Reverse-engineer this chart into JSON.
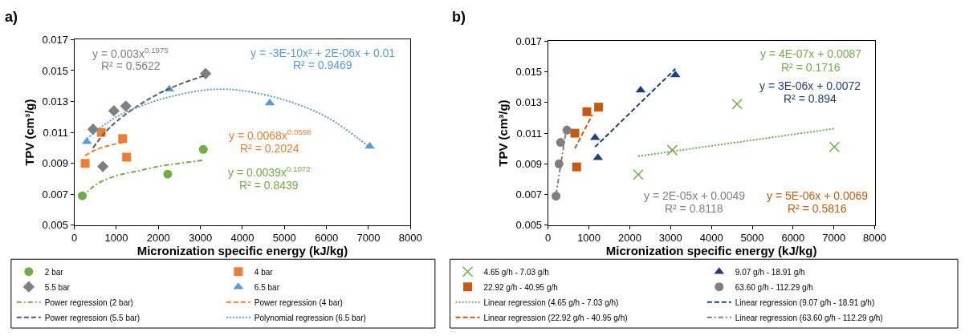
{
  "chart_data": [
    {
      "type": "scatter",
      "title": "a)",
      "xlabel": "Micronization specific energy (kJ/kg)",
      "ylabel": "TPV (cm³/g)",
      "xlim": [
        0,
        8000
      ],
      "xticks": [
        0,
        1000,
        2000,
        3000,
        4000,
        5000,
        6000,
        7000,
        8000
      ],
      "ylim": [
        0.005,
        0.017
      ],
      "yticks": [
        0.005,
        0.007,
        0.009,
        0.011,
        0.013,
        0.015,
        0.017
      ],
      "legend": "bottom",
      "series": [
        {
          "name": "2 bar",
          "color": "#70ad47",
          "marker": "circle",
          "x": [
            188,
            2221,
            3068
          ],
          "values": [
            0.0069,
            0.0083,
            0.0099
          ]
        },
        {
          "name": "4 bar",
          "color": "#ed7d31",
          "marker": "square",
          "x": [
            256,
            640,
            1148,
            1242
          ],
          "values": [
            0.009,
            0.011,
            0.0106,
            0.0094
          ]
        },
        {
          "name": "5.5 bar",
          "color": "#7f7f7f",
          "marker": "diamond",
          "x": [
            444,
            678,
            941,
            1224,
            3124
          ],
          "values": [
            0.0112,
            0.0088,
            0.0124,
            0.0127,
            0.0148
          ]
        },
        {
          "name": "6.5 bar",
          "color": "#5b9bd5",
          "marker": "triangle",
          "x": [
            296,
            2258,
            4650,
            7030
          ],
          "values": [
            0.0104,
            0.0138,
            0.0129,
            0.0101
          ]
        },
        {
          "name": "Power regression (2 bar)",
          "type": "line",
          "color": "#70ad47",
          "marker": "none",
          "line_style": "dashdot",
          "x": [
            188,
            500,
            1000,
            1500,
            2000,
            2500,
            3068
          ],
          "values": [
            0.0068,
            0.0076,
            0.0082,
            0.0085,
            0.0088,
            0.009,
            0.0092
          ]
        },
        {
          "name": "Power regression (4 bar)",
          "type": "line",
          "color": "#ed7d31",
          "marker": "none",
          "line_style": "dashed",
          "x": [
            256,
            450,
            640,
            900,
            1242
          ],
          "values": [
            0.0095,
            0.0098,
            0.01,
            0.0102,
            0.0104
          ]
        },
        {
          "name": "Power regression (5.5 bar)",
          "type": "line",
          "color": "#595959",
          "marker": "none",
          "line_style": "dashed",
          "x": [
            444,
            700,
            1000,
            1500,
            2000,
            2500,
            3124
          ],
          "values": [
            0.01,
            0.0109,
            0.0117,
            0.0127,
            0.0135,
            0.0141,
            0.0147
          ]
        },
        {
          "name": "Polynomial regression (6.5 bar)",
          "type": "line",
          "color": "#5b9bd5",
          "marker": "none",
          "line_style": "dotted",
          "x": [
            296,
            1000,
            2000,
            3000,
            3500,
            4000,
            5000,
            6000,
            7000
          ],
          "values": [
            0.0106,
            0.012,
            0.0131,
            0.0137,
            0.0138,
            0.0137,
            0.0131,
            0.012,
            0.0101
          ]
        }
      ],
      "annotations": [
        "y = 0.003x$^{0.1975}$",
        "R² = 0.5622",
        "y = -3E-10x² + 2E-06x + 0.01",
        "R² = 0.9469",
        "y = 0.0068x$^{0.0598}$",
        "R² = 0.2024",
        "y = 0.0039x$^{0.1072}$",
        "R² = 0.8439"
      ]
    },
    {
      "type": "scatter",
      "title": "b)",
      "xlabel": "Micronization specific energy (kJ/kg)",
      "ylabel": "TPV (cm³/g)",
      "xlim": [
        0,
        8000
      ],
      "xticks": [
        0,
        1000,
        2000,
        3000,
        4000,
        5000,
        6000,
        7000,
        8000
      ],
      "ylim": [
        0.005,
        0.017
      ],
      "yticks": [
        0.005,
        0.007,
        0.009,
        0.011,
        0.013,
        0.015,
        0.017
      ],
      "legend": "bottom",
      "series": [
        {
          "name": "4.65 g/h - 7.03 g/h",
          "color": "#70ad47",
          "marker": "cross",
          "x": [
            2208,
            3041,
            4630,
            7012
          ],
          "values": [
            0.0083,
            0.0099,
            0.0129,
            0.0101
          ]
        },
        {
          "name": "9.07 g/h - 18.91 g/h",
          "color": "#203f7a",
          "marker": "triangle",
          "x": [
            1150,
            1220,
            2266,
            3118
          ],
          "values": [
            0.0107,
            0.0094,
            0.0138,
            0.0148
          ]
        },
        {
          "name": "22.92 g/h - 40.95 g/h",
          "color": "#c55a11",
          "marker": "square",
          "x": [
            655,
            698,
            949,
            1236
          ],
          "values": [
            0.011,
            0.0088,
            0.0124,
            0.0127
          ]
        },
        {
          "name": "63.60 g/h - 112.29 g/h",
          "color": "#7f7f7f",
          "marker": "circle",
          "x": [
            194,
            267,
            306,
            461
          ],
          "values": [
            0.0069,
            0.009,
            0.0104,
            0.0112
          ]
        },
        {
          "name": "Linear regression (4.65 g/h - 7.03 g/h)",
          "type": "line",
          "color": "#70ad47",
          "marker": "none",
          "line_style": "dotted",
          "x": [
            2208,
            7012
          ],
          "values": [
            0.0095,
            0.0113
          ]
        },
        {
          "name": "Linear regression (9.07 g/h - 18.91 g/h)",
          "type": "line",
          "color": "#203f7a",
          "marker": "none",
          "line_style": "dashed",
          "x": [
            1150,
            3118
          ],
          "values": [
            0.0101,
            0.0152
          ]
        },
        {
          "name": "Linear regression (22.92 g/h - 40.95 g/h)",
          "type": "line",
          "color": "#c55a11",
          "marker": "none",
          "line_style": "dashed",
          "x": [
            655,
            1083
          ],
          "values": [
            0.01,
            0.0122
          ]
        },
        {
          "name": "Linear regression (63.60 g/h - 112.29 g/h)",
          "type": "line",
          "color": "#7f7f7f",
          "marker": "none",
          "line_style": "dashdot",
          "x": [
            194,
            461
          ],
          "values": [
            0.007,
            0.0115
          ]
        }
      ],
      "annotations": [
        "y = 4E-07x + 0.0087",
        "R² = 0.1716",
        "y = 3E-06x + 0.0072",
        "R² = 0.894",
        "y = 2E-05x + 0.0049",
        "R² = 0.8118",
        "y = 5E-06x + 0.0069",
        "R² = 0.5816"
      ]
    }
  ]
}
